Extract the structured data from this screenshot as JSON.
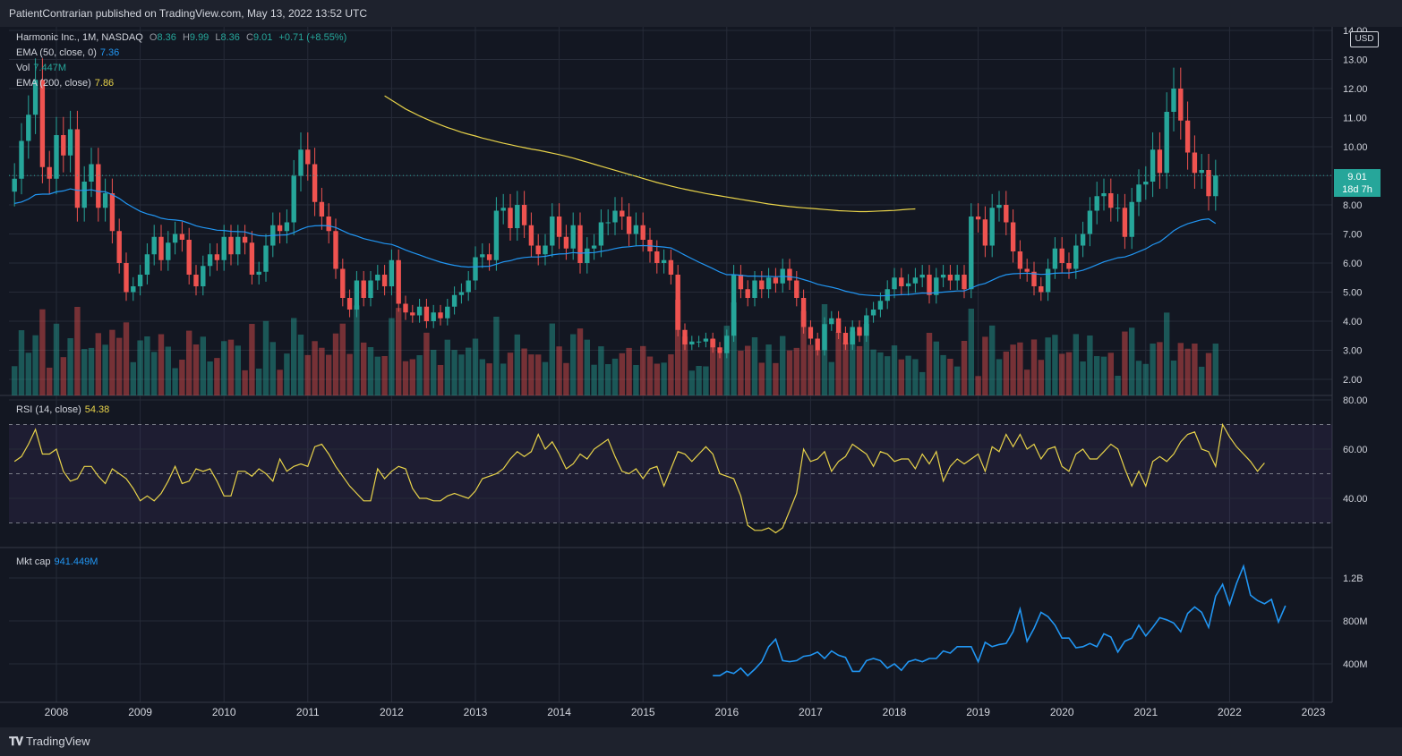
{
  "header": {
    "publisher": "PatientContrarian published on TradingView.com, May 13, 2022 13:52 UTC"
  },
  "footer": {
    "brand": "TradingView"
  },
  "currency": "USD",
  "last_price": {
    "value": "9.01",
    "countdown": "18d 7h"
  },
  "legend": {
    "symbol": "Harmonic Inc., 1M, NASDAQ",
    "ohlc": {
      "o_label": "O",
      "o": "8.36",
      "h_label": "H",
      "h": "9.99",
      "l_label": "L",
      "l": "8.36",
      "c_label": "C",
      "c": "9.01",
      "change": "+0.71 (+8.55%)"
    },
    "ema50": {
      "label": "EMA (50, close, 0)",
      "value": "7.36"
    },
    "vol": {
      "label": "Vol",
      "value": "7.447M"
    },
    "ema200": {
      "label": "EMA (200, close)",
      "value": "7.86"
    },
    "rsi": {
      "label": "RSI (14, close)",
      "value": "54.38"
    },
    "mktcap": {
      "label": "Mkt cap",
      "value": "941.449M"
    }
  },
  "colors": {
    "up": "#26a69a",
    "down": "#ef5350",
    "ema50": "#2196f3",
    "ema200": "#e8d34a",
    "rsi": "#e8d34a",
    "mktcap": "#2196f3",
    "bg": "#131722",
    "grid": "#262b38"
  },
  "chart_data": [
    {
      "type": "candlestick",
      "interval": "1M",
      "start": "2007-07",
      "price_ticks": [
        "2.00",
        "3.00",
        "4.00",
        "5.00",
        "6.00",
        "7.00",
        "8.00",
        "9.00",
        "10.00",
        "11.00",
        "12.00",
        "13.00",
        "14.00"
      ],
      "x_ticks": [
        "2008",
        "2009",
        "2010",
        "2011",
        "2012",
        "2013",
        "2014",
        "2015",
        "2016",
        "2017",
        "2018",
        "2019",
        "2020",
        "2021",
        "2022",
        "2023"
      ],
      "close": [
        8.9,
        10.2,
        11.1,
        12.3,
        9.3,
        8.9,
        10.4,
        9.7,
        10.6,
        7.9,
        8.8,
        9.4,
        7.9,
        8.4,
        7.1,
        6.0,
        5.0,
        5.2,
        5.6,
        6.3,
        6.9,
        6.1,
        6.7,
        7.0,
        6.8,
        5.6,
        5.2,
        5.9,
        6.3,
        6.1,
        6.9,
        6.3,
        6.9,
        6.7,
        5.6,
        5.7,
        6.6,
        7.3,
        7.1,
        7.4,
        9.0,
        9.9,
        9.4,
        8.1,
        7.6,
        7.1,
        5.8,
        4.8,
        4.4,
        5.4,
        4.8,
        5.4,
        5.6,
        5.2,
        6.1,
        4.6,
        4.3,
        4.2,
        4.5,
        4.0,
        4.3,
        4.1,
        4.5,
        4.9,
        5.0,
        5.4,
        6.2,
        6.3,
        6.1,
        7.8,
        7.9,
        7.2,
        8.0,
        7.3,
        6.6,
        6.3,
        6.6,
        7.6,
        6.9,
        6.5,
        7.3,
        6.0,
        6.5,
        6.6,
        7.4,
        7.4,
        7.8,
        7.6,
        7.0,
        7.3,
        6.8,
        6.4,
        6.0,
        6.1,
        5.6,
        3.7,
        3.2,
        3.3,
        3.3,
        3.4,
        3.1,
        2.9,
        3.5,
        5.6,
        5.1,
        4.8,
        5.4,
        5.1,
        5.5,
        5.3,
        5.8,
        5.4,
        4.8,
        3.8,
        3.4,
        3.0,
        3.9,
        4.1,
        3.6,
        3.2,
        3.8,
        3.5,
        4.2,
        4.4,
        4.7,
        5.1,
        5.5,
        5.2,
        5.3,
        5.5,
        5.6,
        4.9,
        5.5,
        5.6,
        5.4,
        5.6,
        5.1,
        7.6,
        7.5,
        6.6,
        7.9,
        8.0,
        7.4,
        6.4,
        5.8,
        5.7,
        5.2,
        5.0,
        5.8,
        6.5,
        6.0,
        5.8,
        6.6,
        7.0,
        7.8,
        8.3,
        8.4,
        7.9,
        7.9,
        6.9,
        8.1,
        8.7,
        8.8,
        9.9,
        9.1,
        11.2,
        12.0,
        10.9,
        9.8,
        9.1,
        9.2,
        8.3,
        9.01
      ],
      "ema50": [
        8.05,
        8.1,
        8.2,
        8.35,
        8.37,
        8.37,
        8.45,
        8.48,
        8.55,
        8.5,
        8.5,
        8.52,
        8.46,
        8.45,
        8.35,
        8.22,
        8.05,
        7.91,
        7.78,
        7.69,
        7.63,
        7.54,
        7.5,
        7.48,
        7.45,
        7.37,
        7.28,
        7.22,
        7.18,
        7.13,
        7.12,
        7.09,
        7.08,
        7.07,
        7.0,
        6.94,
        6.93,
        6.95,
        6.96,
        6.97,
        7.05,
        7.16,
        7.25,
        7.28,
        7.29,
        7.28,
        7.22,
        7.11,
        7.0,
        6.93,
        6.84,
        6.78,
        6.73,
        6.67,
        6.64,
        6.55,
        6.45,
        6.36,
        6.28,
        6.19,
        6.11,
        6.03,
        5.97,
        5.92,
        5.88,
        5.86,
        5.87,
        5.88,
        5.89,
        5.96,
        6.04,
        6.08,
        6.15,
        6.19,
        6.21,
        6.21,
        6.23,
        6.28,
        6.31,
        6.32,
        6.36,
        6.34,
        6.35,
        6.36,
        6.4,
        6.44,
        6.5,
        6.54,
        6.56,
        6.59,
        6.6,
        6.59,
        6.57,
        6.55,
        6.52,
        6.4,
        6.27,
        6.15,
        6.03,
        5.92,
        5.81,
        5.69,
        5.6,
        5.6,
        5.58,
        5.55,
        5.55,
        5.54,
        5.54,
        5.53,
        5.54,
        5.53,
        5.5,
        5.43,
        5.36,
        5.27,
        5.22,
        5.17,
        5.11,
        5.03,
        4.98,
        4.92,
        4.9,
        4.88,
        4.87,
        4.88,
        4.9,
        4.91,
        4.92,
        4.94,
        4.97,
        4.96,
        4.98,
        5.0,
        5.02,
        5.04,
        5.04,
        5.14,
        5.24,
        5.3,
        5.41,
        5.52,
        5.6,
        5.63,
        5.64,
        5.65,
        5.63,
        5.61,
        5.62,
        5.65,
        5.66,
        5.66,
        5.7,
        5.75,
        5.84,
        5.94,
        6.04,
        6.11,
        6.18,
        6.21,
        6.29,
        6.39,
        6.49,
        6.63,
        6.73,
        6.91,
        7.11,
        7.25,
        7.35,
        7.42,
        7.49,
        7.52,
        7.36
      ],
      "ema200_start": "2011-12",
      "ema200": [
        11.75,
        11.6,
        11.45,
        11.3,
        11.18,
        11.06,
        10.95,
        10.85,
        10.75,
        10.66,
        10.58,
        10.5,
        10.43,
        10.37,
        10.3,
        10.24,
        10.18,
        10.12,
        10.07,
        10.02,
        9.97,
        9.92,
        9.88,
        9.83,
        9.78,
        9.73,
        9.67,
        9.61,
        9.54,
        9.47,
        9.4,
        9.33,
        9.26,
        9.19,
        9.12,
        9.05,
        8.98,
        8.91,
        8.84,
        8.77,
        8.71,
        8.65,
        8.59,
        8.54,
        8.49,
        8.44,
        8.39,
        8.35,
        8.31,
        8.27,
        8.23,
        8.19,
        8.15,
        8.11,
        8.07,
        8.03,
        8.0,
        7.97,
        7.94,
        7.92,
        7.9,
        7.88,
        7.86,
        7.84,
        7.82,
        7.8,
        7.79,
        7.78,
        7.77,
        7.77,
        7.78,
        7.79,
        7.8,
        7.81,
        7.83,
        7.85,
        7.86
      ],
      "volume_note": "relative volume bars"
    },
    {
      "type": "line",
      "name": "RSI (14, close)",
      "y_ticks": [
        "40.00",
        "60.00",
        "80.00"
      ],
      "bands": [
        30,
        50,
        70
      ],
      "values": [
        55,
        57,
        62,
        68,
        58,
        58,
        60,
        51,
        47,
        48,
        53,
        53,
        49,
        46,
        52,
        50,
        48,
        44,
        39,
        41,
        39,
        42,
        47,
        53,
        46,
        47,
        52,
        51,
        52,
        47,
        41,
        41,
        51,
        51,
        49,
        52,
        50,
        47,
        56,
        51,
        53,
        54,
        53,
        61,
        62,
        58,
        53,
        49,
        45,
        42,
        39,
        39,
        52,
        48,
        51,
        53,
        52,
        44,
        40,
        40,
        39,
        39,
        41,
        42,
        41,
        40,
        43,
        48,
        49,
        50,
        52,
        56,
        59,
        57,
        59,
        66,
        60,
        63,
        58,
        52,
        54,
        58,
        56,
        60,
        62,
        64,
        57,
        51,
        50,
        52,
        48,
        52,
        53,
        45,
        52,
        59,
        58,
        55,
        58,
        61,
        58,
        50,
        49,
        48,
        41,
        29,
        27,
        27,
        28,
        26,
        28,
        35,
        42,
        60,
        55,
        56,
        59,
        51,
        55,
        57,
        62,
        60,
        58,
        53,
        59,
        58,
        55,
        56,
        56,
        52,
        58,
        54,
        59,
        47,
        53,
        56,
        54,
        56,
        58,
        51,
        61,
        59,
        66,
        61,
        66,
        60,
        62,
        56,
        60,
        61,
        53,
        51,
        58,
        60,
        56,
        56,
        59,
        62,
        60,
        52,
        45,
        51,
        45,
        55,
        57,
        55,
        58,
        63,
        66,
        67,
        60,
        59,
        53,
        70,
        65,
        61,
        58,
        55,
        51,
        54.38
      ]
    },
    {
      "type": "line",
      "name": "Mkt cap",
      "y_ticks": [
        "400M",
        "800M",
        "1.2B"
      ],
      "start": "2015-11",
      "values": [
        290,
        290,
        330,
        310,
        360,
        290,
        350,
        420,
        560,
        630,
        430,
        420,
        430,
        470,
        480,
        510,
        450,
        520,
        480,
        460,
        330,
        330,
        430,
        450,
        430,
        360,
        400,
        340,
        420,
        440,
        420,
        450,
        450,
        520,
        500,
        560,
        560,
        560,
        420,
        600,
        560,
        580,
        590,
        700,
        910,
        610,
        730,
        880,
        840,
        760,
        640,
        640,
        550,
        560,
        590,
        560,
        680,
        650,
        510,
        610,
        640,
        760,
        660,
        740,
        830,
        810,
        780,
        700,
        870,
        930,
        880,
        740,
        1030,
        1140,
        950,
        1150,
        1310,
        1040,
        990,
        960,
        1000,
        790,
        941.449
      ]
    }
  ]
}
